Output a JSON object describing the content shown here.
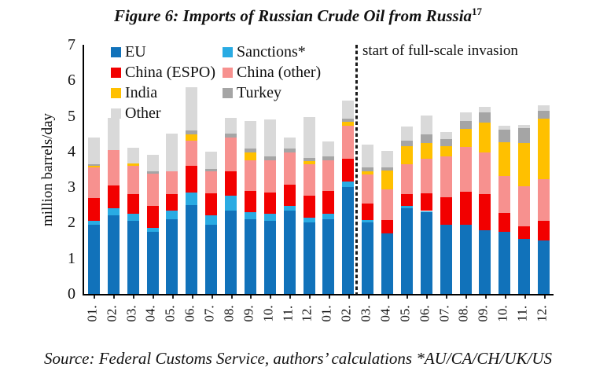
{
  "title": {
    "text": "Figure 6: Imports of Russian Crude Oil from Russia",
    "superscript": "17"
  },
  "y_axis": {
    "label": "million barrels/day",
    "ticks": [
      "0",
      "1",
      "2",
      "3",
      "4",
      "5",
      "6",
      "7"
    ],
    "min": 0,
    "max": 7
  },
  "annotation": {
    "text": "start of full-scale invasion"
  },
  "source": {
    "text": "Source: Federal Customs Service, authors’ calculations *AU/CA/CH/UK/US"
  },
  "chart_data": {
    "type": "bar",
    "stacked": true,
    "title": "Figure 6: Imports of Russian Crude Oil from Russia",
    "ylabel": "million barrels/day",
    "ylim": [
      0,
      7
    ],
    "grid": false,
    "legend_position": "top-left, two columns",
    "categories": [
      "01.",
      "02.",
      "03.",
      "04.",
      "05.",
      "06.",
      "07.",
      "08.",
      "09.",
      "10.",
      "11.",
      "12.",
      "01.",
      "02.",
      "03.",
      "04.",
      "05.",
      "06.",
      "07.",
      "08.",
      "09.",
      "10.",
      "11.",
      "12."
    ],
    "invasion_line_after_category_index": 13,
    "series": [
      {
        "name": "EU",
        "color": "#1172BA",
        "values": [
          1.95,
          2.2,
          2.05,
          1.75,
          2.1,
          2.5,
          1.95,
          2.35,
          2.1,
          2.05,
          2.35,
          2.0,
          2.1,
          3.0,
          2.0,
          1.7,
          2.4,
          2.3,
          1.95,
          1.95,
          1.8,
          1.75,
          1.55,
          1.5
        ]
      },
      {
        "name": "Sanctions*",
        "color": "#29ABE3",
        "values": [
          0.1,
          0.2,
          0.2,
          0.1,
          0.25,
          0.35,
          0.25,
          0.4,
          0.2,
          0.2,
          0.13,
          0.15,
          0.15,
          0.15,
          0.08,
          0.0,
          0.07,
          0.03,
          0.0,
          0.0,
          0.0,
          0.0,
          0.0,
          0.0
        ]
      },
      {
        "name": "China (ESPO)",
        "color": "#F20000",
        "values": [
          0.65,
          0.65,
          0.55,
          0.63,
          0.45,
          0.75,
          0.62,
          0.7,
          0.6,
          0.6,
          0.6,
          0.6,
          0.65,
          0.64,
          0.47,
          0.37,
          0.33,
          0.5,
          0.77,
          0.92,
          1.0,
          0.53,
          0.34,
          0.55
        ]
      },
      {
        "name": "China (other)",
        "color": "#F7918F",
        "values": [
          0.85,
          1.0,
          0.8,
          0.9,
          0.65,
          0.7,
          0.63,
          0.95,
          0.85,
          0.9,
          0.9,
          0.9,
          0.85,
          0.93,
          0.8,
          0.87,
          0.84,
          0.96,
          1.14,
          1.25,
          1.17,
          1.03,
          1.13,
          1.18
        ]
      },
      {
        "name": "India",
        "color": "#FFC000",
        "values": [
          0.05,
          0.0,
          0.07,
          0.0,
          0.0,
          0.18,
          0.0,
          0.0,
          0.23,
          0.0,
          0.0,
          0.08,
          0.0,
          0.11,
          0.1,
          0.52,
          0.52,
          0.44,
          0.3,
          0.51,
          0.85,
          0.96,
          1.21,
          1.69
        ]
      },
      {
        "name": "Turkey",
        "color": "#A5A5A5",
        "values": [
          0.05,
          0.0,
          0.0,
          0.07,
          0.0,
          0.12,
          0.07,
          0.1,
          0.1,
          0.11,
          0.1,
          0.09,
          0.11,
          0.1,
          0.1,
          0.1,
          0.14,
          0.25,
          0.2,
          0.22,
          0.29,
          0.35,
          0.43,
          0.22
        ]
      },
      {
        "name": "Other",
        "color": "#D9D9D9",
        "values": [
          0.75,
          0.9,
          0.43,
          0.45,
          1.05,
          1.2,
          0.48,
          0.45,
          0.78,
          1.04,
          0.32,
          1.15,
          0.42,
          0.51,
          0.65,
          0.46,
          0.4,
          0.53,
          0.2,
          0.26,
          0.15,
          0.1,
          0.08,
          0.17
        ]
      }
    ]
  }
}
